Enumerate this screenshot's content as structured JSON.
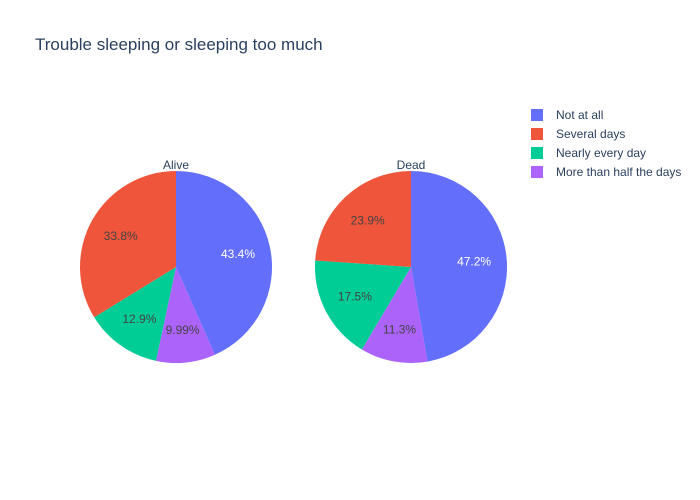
{
  "title": "Trouble sleeping or sleeping too much",
  "legend": {
    "items": [
      {
        "label": "Not at all",
        "color": "#636efa"
      },
      {
        "label": "Several days",
        "color": "#ef553b"
      },
      {
        "label": "Nearly every day",
        "color": "#00cc96"
      },
      {
        "label": "More than half the days",
        "color": "#ab63fa"
      }
    ]
  },
  "chart_data": {
    "type": "pie",
    "title": "Trouble sleeping or sleeping too much",
    "legend_position": "top-right",
    "categories": [
      "Not at all",
      "Several days",
      "Nearly every day",
      "More than half the days"
    ],
    "colors": [
      "#636efa",
      "#ef553b",
      "#00cc96",
      "#ab63fa"
    ],
    "pies": [
      {
        "name": "Alive",
        "slices": [
          {
            "category": "Not at all",
            "value": 43.4,
            "label": "43.4%"
          },
          {
            "category": "More than half the days",
            "value": 9.99,
            "label": "9.99%"
          },
          {
            "category": "Nearly every day",
            "value": 12.9,
            "label": "12.9%"
          },
          {
            "category": "Several days",
            "value": 33.8,
            "label": "33.8%"
          }
        ]
      },
      {
        "name": "Dead",
        "slices": [
          {
            "category": "Not at all",
            "value": 47.2,
            "label": "47.2%"
          },
          {
            "category": "More than half the days",
            "value": 11.3,
            "label": "11.3%"
          },
          {
            "category": "Nearly every day",
            "value": 17.5,
            "label": "17.5%"
          },
          {
            "category": "Several days",
            "value": 23.9,
            "label": "23.9%"
          }
        ]
      }
    ]
  }
}
